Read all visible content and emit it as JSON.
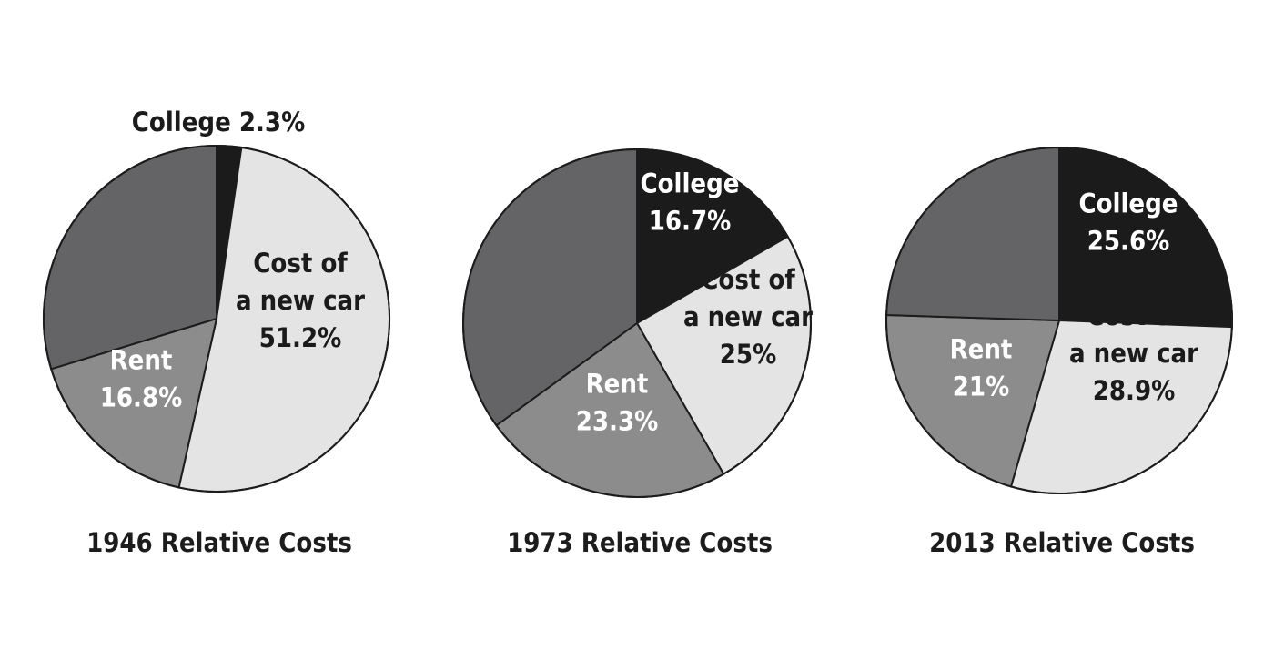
{
  "chart_data": [
    {
      "type": "pie",
      "title": "1946 Relative Costs",
      "start_angle": 0,
      "slices": [
        {
          "name": "College",
          "value": 2.3,
          "label_lines": [
            "College 2.3%"
          ],
          "color": "#1b1b1b",
          "label_color": "#1b1b1b"
        },
        {
          "name": "Cost of a new car",
          "value": 51.2,
          "label_lines": [
            "Cost of",
            "a new car",
            "51.2%"
          ],
          "color": "#e4e4e4",
          "label_color": "#1b1b1b"
        },
        {
          "name": "Rent",
          "value": 16.8,
          "label_lines": [
            "Rent",
            "16.8%"
          ],
          "color": "#8c8c8d",
          "label_color": "#ffffff"
        },
        {
          "name": "",
          "value": 29.7,
          "label_lines": [],
          "color": "#646466",
          "label_color": "#ffffff"
        }
      ]
    },
    {
      "type": "pie",
      "title": "1973 Relative Costs",
      "start_angle": 0,
      "slices": [
        {
          "name": "College",
          "value": 16.7,
          "label_lines": [
            "College",
            "16.7%"
          ],
          "color": "#1b1b1b",
          "label_color": "#ffffff"
        },
        {
          "name": "Cost of a new car",
          "value": 25,
          "label_lines": [
            "Cost of",
            "a new car",
            "25%"
          ],
          "color": "#e4e4e4",
          "label_color": "#1b1b1b"
        },
        {
          "name": "Rent",
          "value": 23.3,
          "label_lines": [
            "Rent",
            "23.3%"
          ],
          "color": "#8c8c8d",
          "label_color": "#ffffff"
        },
        {
          "name": "",
          "value": 35,
          "label_lines": [],
          "color": "#646466",
          "label_color": "#ffffff"
        }
      ]
    },
    {
      "type": "pie",
      "title": "2013 Relative Costs",
      "start_angle": 0,
      "slices": [
        {
          "name": "College",
          "value": 25.6,
          "label_lines": [
            "College",
            "25.6%"
          ],
          "color": "#1b1b1b",
          "label_color": "#ffffff"
        },
        {
          "name": "Cost of a new car",
          "value": 28.9,
          "label_lines": [
            "Cost of",
            "a new car",
            "28.9%"
          ],
          "color": "#e4e4e4",
          "label_color": "#1b1b1b"
        },
        {
          "name": "Rent",
          "value": 21,
          "label_lines": [
            "Rent",
            "21%"
          ],
          "color": "#8c8c8d",
          "label_color": "#ffffff"
        },
        {
          "name": "",
          "value": 24.5,
          "label_lines": [],
          "color": "#646466",
          "label_color": "#ffffff"
        }
      ]
    }
  ]
}
